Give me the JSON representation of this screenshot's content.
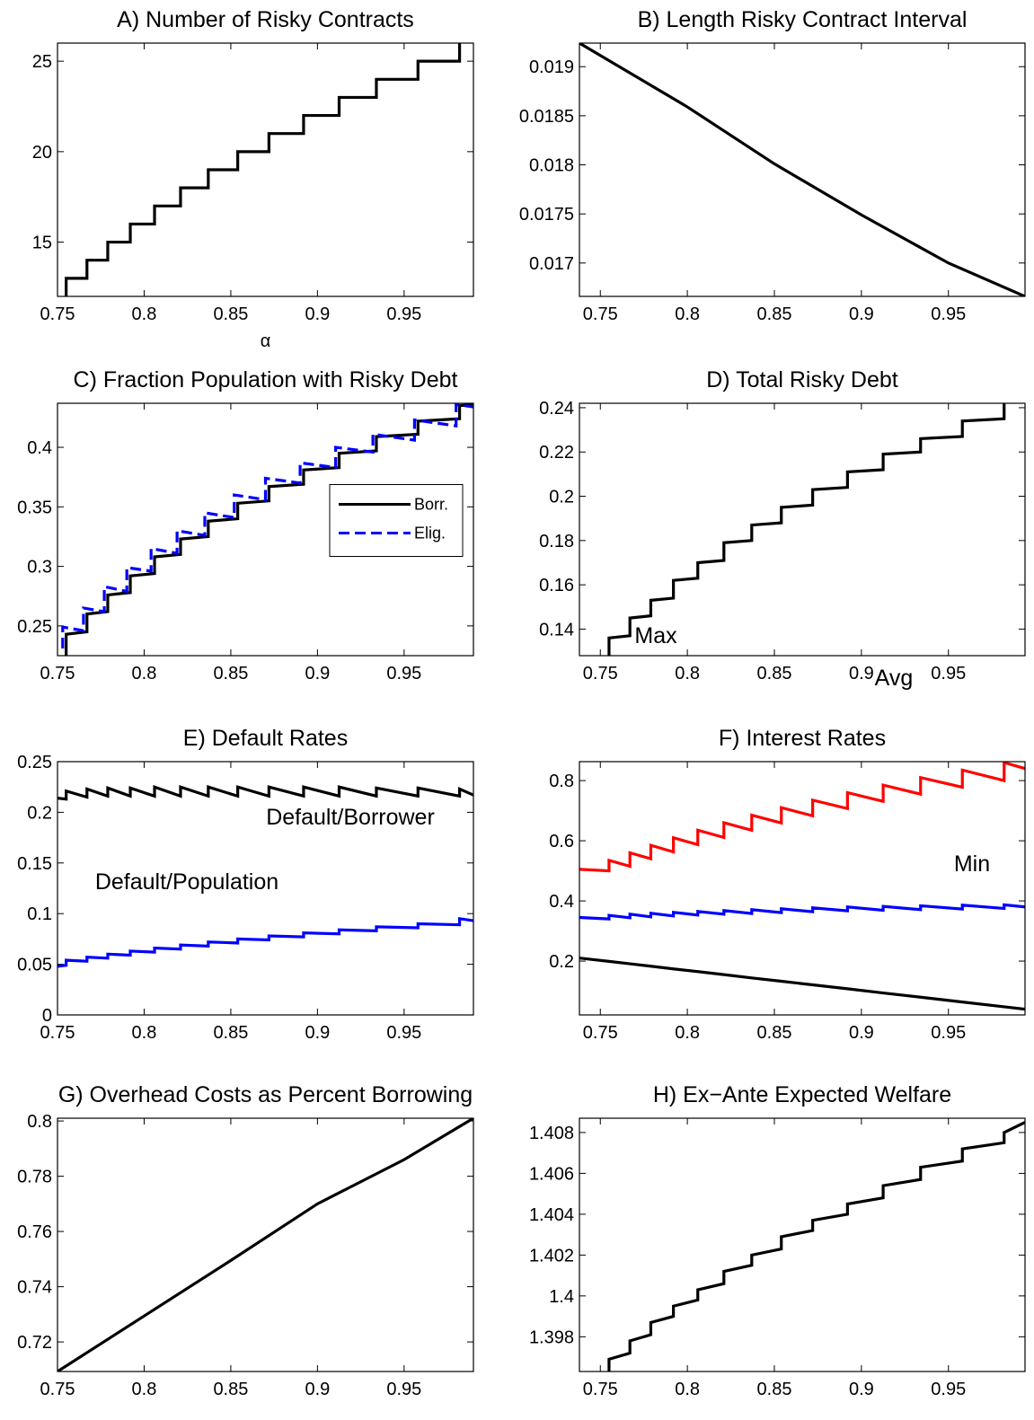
{
  "chart_data": [
    {
      "type": "line",
      "title": "A) Number of Risky Contracts",
      "xlabel": "α",
      "xlim": [
        0.75,
        0.99
      ],
      "xticks": [
        0.75,
        0.8,
        0.85,
        0.9,
        0.95
      ],
      "ylim": [
        12,
        26
      ],
      "yticks": [
        15,
        20,
        25
      ],
      "x": [
        0.755,
        0.755,
        0.767,
        0.767,
        0.779,
        0.779,
        0.792,
        0.792,
        0.806,
        0.806,
        0.821,
        0.821,
        0.837,
        0.837,
        0.854,
        0.854,
        0.872,
        0.872,
        0.892,
        0.892,
        0.9125,
        0.9125,
        0.934,
        0.934,
        0.958,
        0.958,
        0.982,
        0.982
      ],
      "series": [
        {
          "color": "#000000",
          "values": [
            12,
            13,
            13,
            14,
            14,
            15,
            15,
            16,
            16,
            17,
            17,
            18,
            18,
            19,
            19,
            20,
            20,
            21,
            21,
            22,
            22,
            23,
            23,
            24,
            24,
            25,
            25,
            26
          ]
        }
      ]
    },
    {
      "type": "line",
      "title": "B) Length Risky Contract Interval",
      "xlim": [
        0.738,
        0.994
      ],
      "xticks": [
        0.75,
        0.8,
        0.85,
        0.9,
        0.95
      ],
      "ylim": [
        0.01666,
        0.01924
      ],
      "yticks": [
        0.017,
        0.0175,
        0.018,
        0.0185,
        0.019
      ],
      "x": [
        0.738,
        0.8,
        0.85,
        0.9,
        0.95,
        0.994
      ],
      "series": [
        {
          "color": "#000000",
          "values": [
            0.01924,
            0.01859,
            0.01801,
            0.01749,
            0.017,
            0.01666
          ]
        }
      ]
    },
    {
      "type": "line",
      "title": "C) Fraction Population with Risky Debt",
      "legend": "right",
      "xlim": [
        0.75,
        0.99
      ],
      "xticks": [
        0.75,
        0.8,
        0.85,
        0.9,
        0.95
      ],
      "ylim": [
        0.225,
        0.437
      ],
      "yticks": [
        0.25,
        0.3,
        0.35,
        0.4
      ],
      "series": [
        {
          "name": "Borr.",
          "color": "#000000",
          "linestyle": "solid",
          "x": [
            0.755,
            0.755,
            0.767,
            0.767,
            0.779,
            0.779,
            0.792,
            0.792,
            0.806,
            0.806,
            0.821,
            0.821,
            0.837,
            0.837,
            0.854,
            0.854,
            0.872,
            0.872,
            0.892,
            0.892,
            0.9125,
            0.9125,
            0.934,
            0.934,
            0.958,
            0.958,
            0.982,
            0.982,
            0.99
          ],
          "values": [
            0.225,
            0.243,
            0.245,
            0.26,
            0.262,
            0.276,
            0.278,
            0.292,
            0.294,
            0.308,
            0.31,
            0.323,
            0.325,
            0.338,
            0.34,
            0.353,
            0.355,
            0.367,
            0.369,
            0.381,
            0.383,
            0.395,
            0.397,
            0.409,
            0.411,
            0.422,
            0.424,
            0.435,
            0.436
          ]
        },
        {
          "name": "Elig.",
          "color": "#0000ff",
          "linestyle": "dashed",
          "x": [
            0.753,
            0.753,
            0.765,
            0.765,
            0.777,
            0.777,
            0.79,
            0.79,
            0.804,
            0.804,
            0.819,
            0.819,
            0.835,
            0.835,
            0.852,
            0.852,
            0.87,
            0.87,
            0.89,
            0.89,
            0.9105,
            0.9105,
            0.932,
            0.932,
            0.956,
            0.956,
            0.98,
            0.98,
            0.99
          ],
          "values": [
            0.231,
            0.249,
            0.246,
            0.265,
            0.262,
            0.283,
            0.279,
            0.299,
            0.296,
            0.315,
            0.311,
            0.33,
            0.326,
            0.345,
            0.341,
            0.36,
            0.356,
            0.374,
            0.37,
            0.387,
            0.383,
            0.4,
            0.396,
            0.411,
            0.406,
            0.423,
            0.418,
            0.436,
            0.434
          ]
        }
      ]
    },
    {
      "type": "line",
      "title": "D) Total Risky Debt",
      "xlim": [
        0.738,
        0.994
      ],
      "xticks": [
        0.75,
        0.8,
        0.85,
        0.9,
        0.95
      ],
      "ylim": [
        0.128,
        0.242
      ],
      "yticks": [
        0.14,
        0.16,
        0.18,
        0.2,
        0.22,
        0.24
      ],
      "x": [
        0.755,
        0.755,
        0.767,
        0.767,
        0.779,
        0.779,
        0.792,
        0.792,
        0.806,
        0.806,
        0.821,
        0.821,
        0.837,
        0.837,
        0.854,
        0.854,
        0.872,
        0.872,
        0.892,
        0.892,
        0.9125,
        0.9125,
        0.934,
        0.934,
        0.958,
        0.958,
        0.982,
        0.982
      ],
      "series": [
        {
          "color": "#000000",
          "values": [
            0.128,
            0.136,
            0.137,
            0.145,
            0.146,
            0.153,
            0.154,
            0.162,
            0.163,
            0.17,
            0.171,
            0.179,
            0.18,
            0.187,
            0.188,
            0.195,
            0.196,
            0.203,
            0.204,
            0.211,
            0.212,
            0.219,
            0.22,
            0.226,
            0.227,
            0.234,
            0.235,
            0.242
          ]
        }
      ]
    },
    {
      "type": "line",
      "title": "E) Default Rates",
      "annotations": [
        "Default/Borrower",
        "Default/Population"
      ],
      "xlim": [
        0.75,
        0.99
      ],
      "xticks": [
        0.75,
        0.8,
        0.85,
        0.9,
        0.95
      ],
      "ylim": [
        0,
        0.25
      ],
      "yticks": [
        0,
        0.05,
        0.1,
        0.15,
        0.2,
        0.25
      ],
      "x": [
        0.75,
        0.755,
        0.755,
        0.767,
        0.767,
        0.779,
        0.779,
        0.792,
        0.792,
        0.806,
        0.806,
        0.821,
        0.821,
        0.837,
        0.837,
        0.854,
        0.854,
        0.872,
        0.872,
        0.892,
        0.892,
        0.9125,
        0.9125,
        0.934,
        0.934,
        0.958,
        0.958,
        0.982,
        0.982,
        0.99
      ],
      "series": [
        {
          "color": "#000000",
          "values": [
            0.214,
            0.213,
            0.221,
            0.215,
            0.223,
            0.216,
            0.224,
            0.216,
            0.224,
            0.216,
            0.225,
            0.216,
            0.225,
            0.216,
            0.225,
            0.216,
            0.225,
            0.216,
            0.225,
            0.216,
            0.225,
            0.216,
            0.225,
            0.216,
            0.224,
            0.216,
            0.224,
            0.216,
            0.223,
            0.217
          ]
        },
        {
          "color": "#0000ff",
          "values": [
            0.048,
            0.049,
            0.054,
            0.053,
            0.057,
            0.056,
            0.06,
            0.059,
            0.063,
            0.062,
            0.066,
            0.065,
            0.069,
            0.068,
            0.072,
            0.071,
            0.075,
            0.074,
            0.078,
            0.077,
            0.081,
            0.08,
            0.084,
            0.083,
            0.087,
            0.086,
            0.09,
            0.089,
            0.095,
            0.093
          ]
        }
      ]
    },
    {
      "type": "line",
      "title": "F) Interest Rates",
      "annotations": [
        "Max",
        "Avg",
        "Min"
      ],
      "xlim": [
        0.738,
        0.994
      ],
      "xticks": [
        0.75,
        0.8,
        0.85,
        0.9,
        0.95
      ],
      "ylim": [
        0.021,
        0.863
      ],
      "yticks": [
        0.2,
        0.4,
        0.6,
        0.8
      ],
      "x": [
        0.738,
        0.755,
        0.755,
        0.767,
        0.767,
        0.779,
        0.779,
        0.792,
        0.792,
        0.806,
        0.806,
        0.821,
        0.821,
        0.837,
        0.837,
        0.854,
        0.854,
        0.872,
        0.872,
        0.892,
        0.892,
        0.9125,
        0.9125,
        0.934,
        0.934,
        0.958,
        0.958,
        0.982,
        0.982,
        0.994
      ],
      "series": [
        {
          "color": "#ff0000",
          "values": [
            0.505,
            0.5,
            0.535,
            0.515,
            0.56,
            0.54,
            0.585,
            0.563,
            0.61,
            0.587,
            0.635,
            0.611,
            0.66,
            0.635,
            0.685,
            0.659,
            0.71,
            0.683,
            0.735,
            0.707,
            0.76,
            0.731,
            0.785,
            0.755,
            0.81,
            0.778,
            0.835,
            0.8,
            0.86,
            0.84
          ]
        },
        {
          "color": "#0000ff",
          "values": [
            0.345,
            0.34,
            0.352,
            0.344,
            0.356,
            0.347,
            0.359,
            0.35,
            0.362,
            0.353,
            0.365,
            0.356,
            0.368,
            0.358,
            0.371,
            0.361,
            0.374,
            0.364,
            0.377,
            0.367,
            0.38,
            0.369,
            0.382,
            0.371,
            0.384,
            0.373,
            0.386,
            0.375,
            0.387,
            0.38
          ]
        },
        {
          "color": "#000000",
          "values": [
            0.21,
            0.199,
            0.199,
            0.191,
            0.191,
            0.183,
            0.183,
            0.174,
            0.174,
            0.165,
            0.165,
            0.155,
            0.155,
            0.144,
            0.144,
            0.133,
            0.133,
            0.121,
            0.121,
            0.108,
            0.108,
            0.094,
            0.094,
            0.08,
            0.08,
            0.064,
            0.064,
            0.048,
            0.048,
            0.04
          ]
        }
      ]
    },
    {
      "type": "line",
      "title": "G) Overhead Costs as Percent Borrowing",
      "xlim": [
        0.75,
        0.99
      ],
      "xticks": [
        0.75,
        0.8,
        0.85,
        0.9,
        0.95
      ],
      "ylim": [
        0.7093,
        0.801
      ],
      "yticks": [
        0.72,
        0.74,
        0.76,
        0.78,
        0.8
      ],
      "x": [
        0.75,
        0.8,
        0.85,
        0.9,
        0.95,
        0.99
      ],
      "series": [
        {
          "color": "#000000",
          "values": [
            0.7093,
            0.7294,
            0.7495,
            0.77,
            0.786,
            0.801
          ]
        }
      ]
    },
    {
      "type": "line",
      "title": "H) Ex−Ante Expected Welfare",
      "xlim": [
        0.738,
        0.994
      ],
      "xticks": [
        0.75,
        0.8,
        0.85,
        0.9,
        0.95
      ],
      "ylim": [
        1.3963,
        1.4087
      ],
      "yticks": [
        1.398,
        1.4,
        1.402,
        1.404,
        1.406,
        1.408
      ],
      "x": [
        0.755,
        0.755,
        0.767,
        0.767,
        0.779,
        0.779,
        0.792,
        0.792,
        0.806,
        0.806,
        0.821,
        0.821,
        0.837,
        0.837,
        0.854,
        0.854,
        0.872,
        0.872,
        0.892,
        0.892,
        0.9125,
        0.9125,
        0.934,
        0.934,
        0.958,
        0.958,
        0.982,
        0.982,
        0.994
      ],
      "series": [
        {
          "color": "#000000",
          "values": [
            1.3963,
            1.3969,
            1.3972,
            1.3978,
            1.3981,
            1.3987,
            1.399,
            1.3995,
            1.3998,
            1.4003,
            1.4006,
            1.4012,
            1.4015,
            1.402,
            1.4023,
            1.4029,
            1.4032,
            1.4037,
            1.404,
            1.4045,
            1.4048,
            1.4054,
            1.4057,
            1.4063,
            1.4066,
            1.4072,
            1.4075,
            1.408,
            1.4085
          ]
        }
      ]
    }
  ]
}
